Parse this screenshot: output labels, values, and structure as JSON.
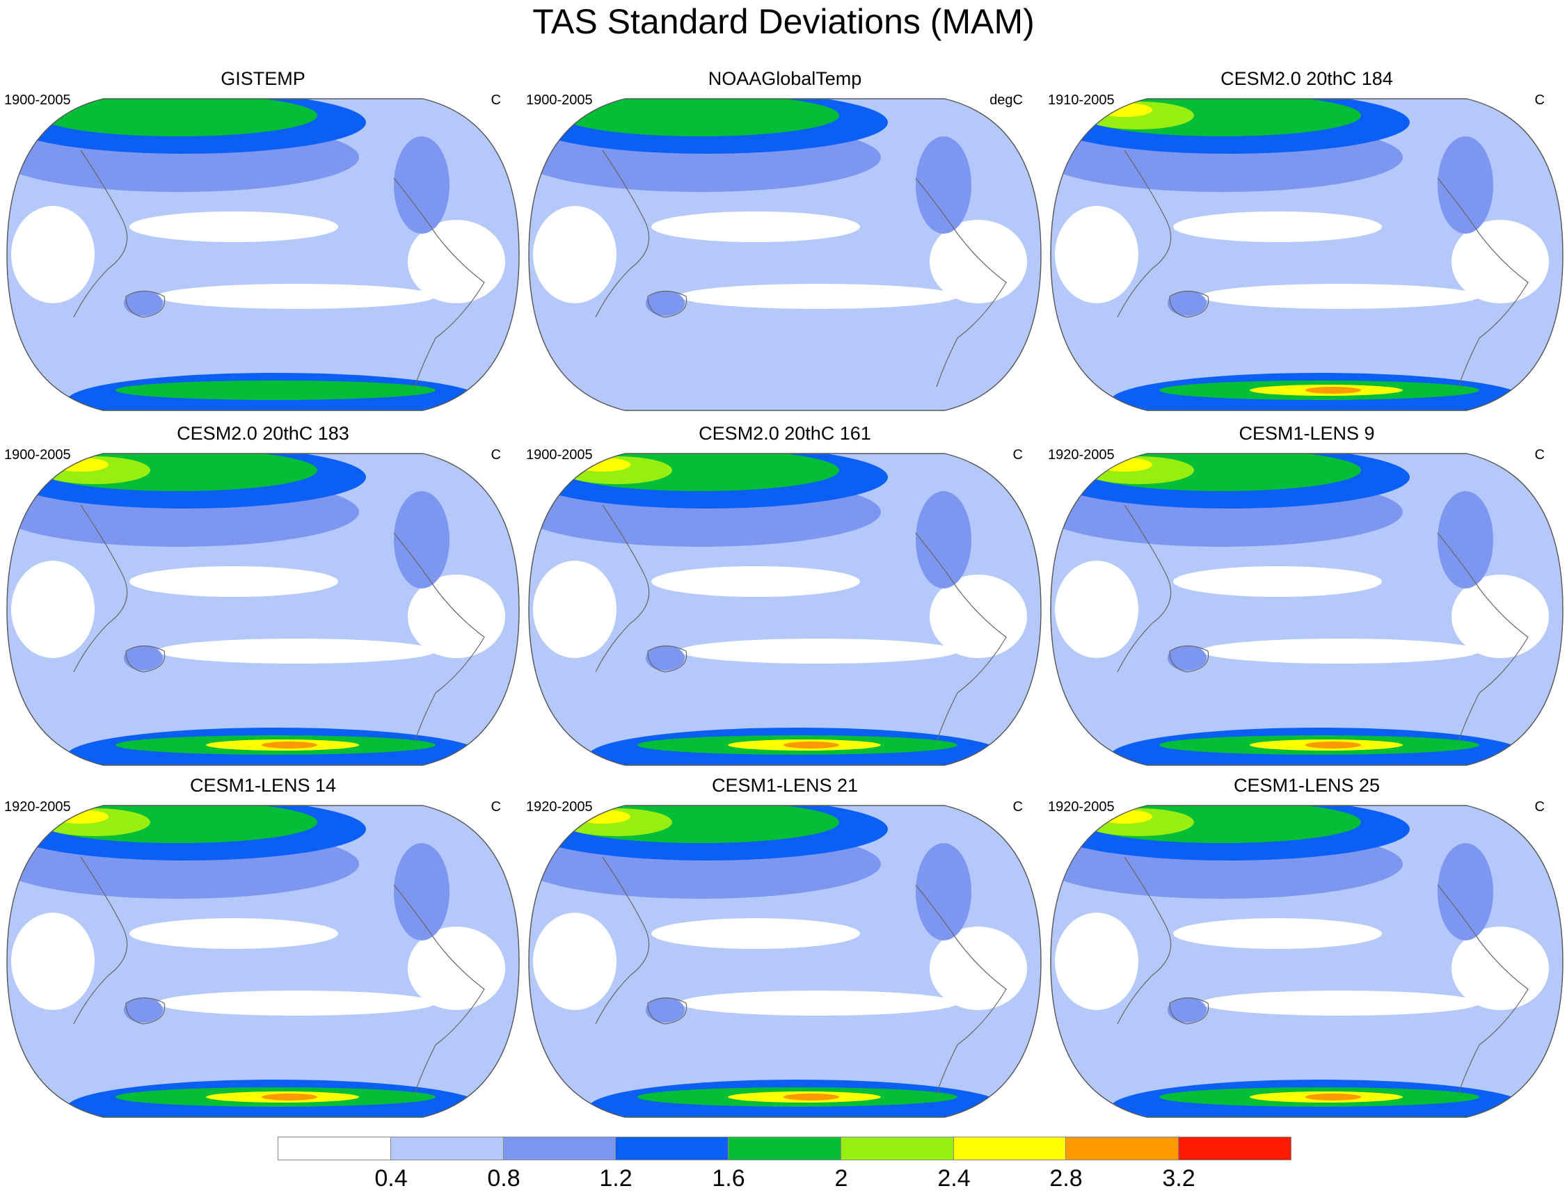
{
  "title": "TAS Standard Deviations (MAM)",
  "colorbar": {
    "colors": [
      "#ffffff",
      "#b4c8fa",
      "#7d96f0",
      "#0b5ff5",
      "#05be37",
      "#99ee11",
      "#ffff00",
      "#ff9900",
      "#ff1a00"
    ],
    "labels": [
      "0.4",
      "0.8",
      "1.2",
      "1.6",
      "2",
      "2.4",
      "2.8",
      "3.2"
    ]
  },
  "panels": [
    {
      "title": "GISTEMP",
      "years": "1900-2005",
      "units": "C"
    },
    {
      "title": "NOAAGlobalTemp",
      "years": "1900-2005",
      "units": "degC"
    },
    {
      "title": "CESM2.0 20thC 184",
      "years": "1910-2005",
      "units": "C"
    },
    {
      "title": "CESM2.0 20thC 183",
      "years": "1900-2005",
      "units": "C"
    },
    {
      "title": "CESM2.0 20thC 161",
      "years": "1900-2005",
      "units": "C"
    },
    {
      "title": "CESM1-LENS 9",
      "years": "1920-2005",
      "units": "C"
    },
    {
      "title": "CESM1-LENS 14",
      "years": "1920-2005",
      "units": "C"
    },
    {
      "title": "CESM1-LENS 21",
      "years": "1920-2005",
      "units": "C"
    },
    {
      "title": "CESM1-LENS 25",
      "years": "1920-2005",
      "units": "C"
    }
  ]
}
